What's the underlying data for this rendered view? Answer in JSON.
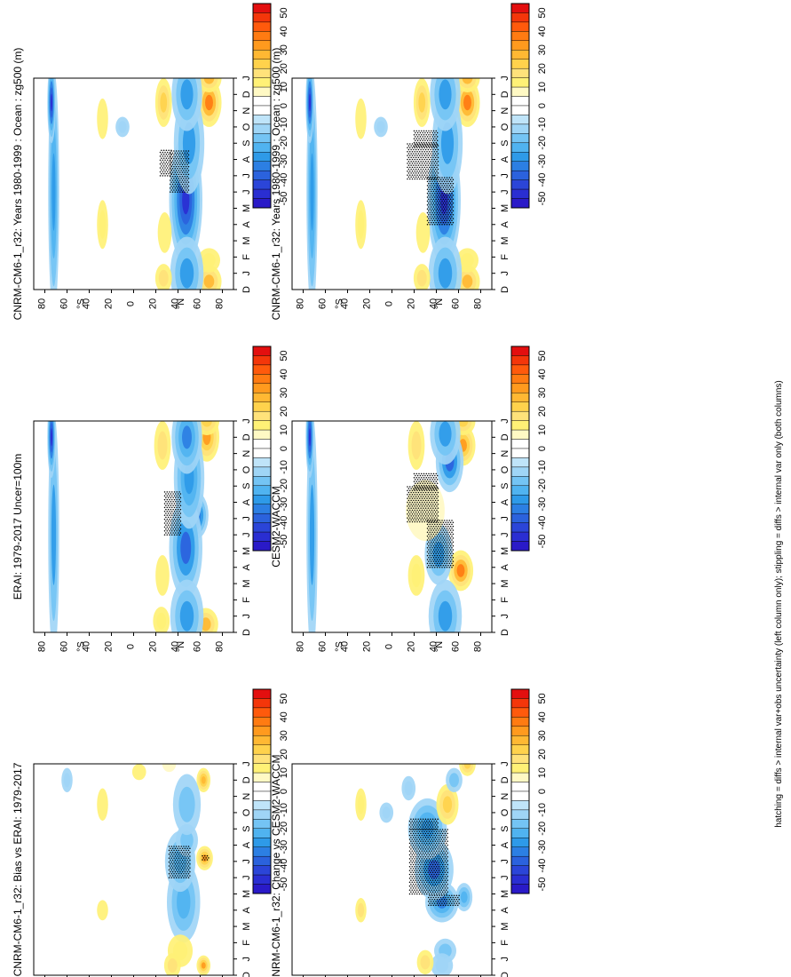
{
  "figure": {
    "footnote": "hatching = diffs > internal var+obs uncertainty (left column only); stippling = diffs > internal var only (both columns)"
  },
  "chart_data": [
    {
      "type": "heatmap",
      "title": "CNRM-CM6-1_r32: Years 1980-1999 : Ocean : zg500 (m)",
      "x_label": "",
      "x_ticks": [
        "D",
        "J",
        "F",
        "M",
        "A",
        "M",
        "J",
        "J",
        "A",
        "S",
        "O",
        "N",
        "D",
        "J"
      ],
      "y_ticks": [
        "80",
        "60",
        "40",
        "20",
        "0",
        "20",
        "40",
        "60",
        "80"
      ],
      "y_hemisphere_labels": [
        "°N",
        "°S"
      ],
      "colorbar_ticks": [
        "50",
        "40",
        "30",
        "20",
        "10",
        "0",
        "-10",
        "-20",
        "-30",
        "-40",
        "-50"
      ],
      "blobs": [
        {
          "month": 0.5,
          "lat": 68,
          "dm": 0.8,
          "dl": 9,
          "value": 25
        },
        {
          "month": 11.5,
          "lat": 68,
          "dm": 1.2,
          "dl": 9,
          "value": 35
        },
        {
          "month": 13.0,
          "lat": 68,
          "dm": 0.7,
          "dl": 9,
          "value": 25
        },
        {
          "month": 1.8,
          "lat": 68,
          "dm": 0.6,
          "dl": 8,
          "value": 12
        },
        {
          "month": 5.5,
          "lat": 47,
          "dm": 3.2,
          "dl": 12,
          "value": -45
        },
        {
          "month": 1.0,
          "lat": 48,
          "dm": 1.8,
          "dl": 12,
          "value": -25
        },
        {
          "month": 9.0,
          "lat": 50,
          "dm": 2.5,
          "dl": 11,
          "value": -25
        },
        {
          "month": 12.0,
          "lat": 48,
          "dm": 1.8,
          "dl": 11,
          "value": -25
        },
        {
          "month": 3.5,
          "lat": 28,
          "dm": 1.0,
          "dl": 5,
          "value": 10
        },
        {
          "month": 11.5,
          "lat": 27,
          "dm": 1.2,
          "dl": 6,
          "value": 20
        },
        {
          "month": 0.7,
          "lat": 27,
          "dm": 0.7,
          "dl": 6,
          "value": 15
        },
        {
          "month": 4.0,
          "lat": -28,
          "dm": 1.2,
          "dl": 4,
          "value": 12
        },
        {
          "month": 10.5,
          "lat": -28,
          "dm": 1.0,
          "dl": 4,
          "value": 10
        },
        {
          "month": 10.0,
          "lat": -10,
          "dm": 0.5,
          "dl": 5,
          "value": -12
        },
        {
          "month": 6.0,
          "lat": -72,
          "dm": 6.0,
          "dl": 4,
          "value": -28
        },
        {
          "month": 11.5,
          "lat": -74,
          "dm": 2.0,
          "dl": 3,
          "value": -45
        }
      ],
      "stipple": [
        {
          "m0": 6.0,
          "m1": 8.6,
          "l0": 33,
          "l1": 50
        },
        {
          "m0": 7.0,
          "m1": 8.6,
          "l0": 24,
          "l1": 34
        }
      ]
    },
    {
      "type": "heatmap",
      "title": "ERAI: 1979-2017 Uncer=100m",
      "x_ticks": [
        "D",
        "J",
        "F",
        "M",
        "A",
        "M",
        "J",
        "J",
        "A",
        "S",
        "O",
        "N",
        "D",
        "J"
      ],
      "y_ticks": [
        "80",
        "60",
        "40",
        "20",
        "0",
        "20",
        "40",
        "60",
        "80"
      ],
      "y_hemisphere_labels": [
        "°N",
        "°S"
      ],
      "colorbar_ticks": [
        "50",
        "40",
        "30",
        "20",
        "10",
        "0",
        "-10",
        "-20",
        "-30",
        "-40",
        "-50"
      ],
      "blobs": [
        {
          "month": 0.5,
          "lat": 65,
          "dm": 0.8,
          "dl": 9,
          "value": 25
        },
        {
          "month": 12.0,
          "lat": 66,
          "dm": 1.2,
          "dl": 9,
          "value": 30
        },
        {
          "month": 13.0,
          "lat": 66,
          "dm": 0.7,
          "dl": 9,
          "value": 20
        },
        {
          "month": 7.2,
          "lat": 55,
          "dm": 1.2,
          "dl": 10,
          "value": -40
        },
        {
          "month": 5.2,
          "lat": 47,
          "dm": 2.5,
          "dl": 12,
          "value": -35
        },
        {
          "month": 1.0,
          "lat": 48,
          "dm": 1.8,
          "dl": 12,
          "value": -25
        },
        {
          "month": 9.5,
          "lat": 50,
          "dm": 2.5,
          "dl": 11,
          "value": -28
        },
        {
          "month": 12.0,
          "lat": 48,
          "dm": 1.8,
          "dl": 11,
          "value": -30
        },
        {
          "month": 3.5,
          "lat": 26,
          "dm": 1.0,
          "dl": 5,
          "value": 10
        },
        {
          "month": 11.5,
          "lat": 26,
          "dm": 1.2,
          "dl": 6,
          "value": 15
        },
        {
          "month": 0.7,
          "lat": 25,
          "dm": 0.7,
          "dl": 6,
          "value": 12
        },
        {
          "month": 6.0,
          "lat": -72,
          "dm": 6.0,
          "dl": 4,
          "value": -25
        },
        {
          "month": 12.0,
          "lat": -74,
          "dm": 2.0,
          "dl": 3,
          "value": -45
        }
      ],
      "stipple": [
        {
          "m0": 6.0,
          "m1": 8.7,
          "l0": 28,
          "l1": 42
        }
      ]
    },
    {
      "type": "heatmap",
      "title": "CNRM-CM6-1_r32: Bias vs ERAI: 1979-2017",
      "x_ticks": [
        "D",
        "J",
        "F",
        "M",
        "A",
        "M",
        "J",
        "J",
        "A",
        "S",
        "O",
        "N",
        "D",
        "J"
      ],
      "y_ticks": [
        "80",
        "60",
        "40",
        "20",
        "0",
        "20",
        "40",
        "60",
        "80"
      ],
      "y_hemisphere_labels": [
        "°N",
        "°S"
      ],
      "colorbar_ticks": [
        "50",
        "40",
        "30",
        "20",
        "10",
        "0",
        "-10",
        "-20",
        "-30",
        "-40",
        "-50"
      ],
      "blobs": [
        {
          "month": 7.2,
          "lat": 64,
          "dm": 0.6,
          "dl": 6,
          "value": 30
        },
        {
          "month": 12.0,
          "lat": 63,
          "dm": 0.6,
          "dl": 5,
          "value": 28
        },
        {
          "month": 0.6,
          "lat": 63,
          "dm": 0.5,
          "dl": 5,
          "value": 30
        },
        {
          "month": 4.5,
          "lat": 45,
          "dm": 2.0,
          "dl": 12,
          "value": -20
        },
        {
          "month": 7.0,
          "lat": 42,
          "dm": 1.5,
          "dl": 11,
          "value": -22
        },
        {
          "month": 8.3,
          "lat": 48,
          "dm": 0.8,
          "dl": 8,
          "value": -15
        },
        {
          "month": 10.5,
          "lat": 48,
          "dm": 1.5,
          "dl": 10,
          "value": -18
        },
        {
          "month": 1.5,
          "lat": 42,
          "dm": 0.8,
          "dl": 9,
          "value": 12
        },
        {
          "month": 0.6,
          "lat": 35,
          "dm": 0.6,
          "dl": 6,
          "value": 15
        },
        {
          "month": 13.0,
          "lat": 32,
          "dm": 0.4,
          "dl": 5,
          "value": 8
        },
        {
          "month": 4.0,
          "lat": -28,
          "dm": 0.5,
          "dl": 4,
          "value": 10
        },
        {
          "month": 10.5,
          "lat": -28,
          "dm": 0.8,
          "dl": 4,
          "value": 10
        },
        {
          "month": 12.0,
          "lat": -60,
          "dm": 0.6,
          "dl": 4,
          "value": -12
        },
        {
          "month": 12.5,
          "lat": 5,
          "dm": 0.4,
          "dl": 5,
          "value": 10
        }
      ],
      "stipple": [
        {
          "m0": 6.0,
          "m1": 8.0,
          "l0": 32,
          "l1": 50
        },
        {
          "m0": 7.1,
          "m1": 7.4,
          "l0": 62,
          "l1": 68
        }
      ]
    },
    {
      "type": "heatmap",
      "title": "CNRM-CM6-1_r32: Years 1980-1999 : Ocean : zg500 (m)",
      "x_ticks": [
        "D",
        "J",
        "F",
        "M",
        "A",
        "M",
        "J",
        "J",
        "A",
        "S",
        "O",
        "N",
        "D",
        "J"
      ],
      "y_ticks": [
        "80",
        "60",
        "40",
        "20",
        "0",
        "20",
        "40",
        "60",
        "80"
      ],
      "y_hemisphere_labels": [
        "°N",
        "°S"
      ],
      "colorbar_ticks": [
        "50",
        "40",
        "30",
        "20",
        "10",
        "0",
        "-10",
        "-20",
        "-30",
        "-40",
        "-50"
      ],
      "blobs": [
        {
          "month": 0.5,
          "lat": 68,
          "dm": 0.8,
          "dl": 9,
          "value": 25
        },
        {
          "month": 11.5,
          "lat": 68,
          "dm": 1.2,
          "dl": 9,
          "value": 35
        },
        {
          "month": 13.0,
          "lat": 68,
          "dm": 0.7,
          "dl": 9,
          "value": 25
        },
        {
          "month": 1.8,
          "lat": 68,
          "dm": 0.6,
          "dl": 8,
          "value": 12
        },
        {
          "month": 5.5,
          "lat": 47,
          "dm": 3.2,
          "dl": 12,
          "value": -45
        },
        {
          "month": 1.0,
          "lat": 48,
          "dm": 1.8,
          "dl": 12,
          "value": -25
        },
        {
          "month": 9.0,
          "lat": 50,
          "dm": 2.5,
          "dl": 11,
          "value": -25
        },
        {
          "month": 12.0,
          "lat": 48,
          "dm": 1.8,
          "dl": 11,
          "value": -25
        },
        {
          "month": 3.5,
          "lat": 28,
          "dm": 1.0,
          "dl": 5,
          "value": 10
        },
        {
          "month": 11.5,
          "lat": 27,
          "dm": 1.2,
          "dl": 6,
          "value": 20
        },
        {
          "month": 0.7,
          "lat": 27,
          "dm": 0.7,
          "dl": 6,
          "value": 15
        },
        {
          "month": 4.0,
          "lat": -28,
          "dm": 1.2,
          "dl": 4,
          "value": 12
        },
        {
          "month": 10.5,
          "lat": -28,
          "dm": 1.0,
          "dl": 4,
          "value": 10
        },
        {
          "month": 10.0,
          "lat": -10,
          "dm": 0.5,
          "dl": 5,
          "value": -12
        },
        {
          "month": 6.0,
          "lat": -72,
          "dm": 6.0,
          "dl": 4,
          "value": -28
        },
        {
          "month": 11.5,
          "lat": -74,
          "dm": 2.0,
          "dl": 3,
          "value": -45
        }
      ],
      "stipple": [
        {
          "m0": 4.0,
          "m1": 7.0,
          "l0": 32,
          "l1": 56
        },
        {
          "m0": 6.8,
          "m1": 9.0,
          "l0": 14,
          "l1": 42
        },
        {
          "m0": 8.8,
          "m1": 9.8,
          "l0": 20,
          "l1": 42
        }
      ]
    },
    {
      "type": "heatmap",
      "title": "CESM2-WACCM",
      "x_ticks": [
        "D",
        "J",
        "F",
        "M",
        "A",
        "M",
        "J",
        "J",
        "A",
        "S",
        "O",
        "N",
        "D",
        "J"
      ],
      "y_ticks": [
        "80",
        "60",
        "40",
        "20",
        "0",
        "20",
        "40",
        "60",
        "80"
      ],
      "y_hemisphere_labels": [
        "°N",
        "°S"
      ],
      "colorbar_ticks": [
        "50",
        "40",
        "30",
        "20",
        "10",
        "0",
        "-10",
        "-20",
        "-30",
        "-40",
        "-50"
      ],
      "blobs": [
        {
          "month": 3.8,
          "lat": 62,
          "dm": 1.0,
          "dl": 9,
          "value": 35
        },
        {
          "month": 11.5,
          "lat": 64,
          "dm": 1.0,
          "dl": 9,
          "value": 32
        },
        {
          "month": 13.0,
          "lat": 64,
          "dm": 0.7,
          "dl": 9,
          "value": 20
        },
        {
          "month": 10.5,
          "lat": 52,
          "dm": 1.5,
          "dl": 10,
          "value": -35
        },
        {
          "month": 4.8,
          "lat": 42,
          "dm": 1.5,
          "dl": 10,
          "value": -25
        },
        {
          "month": 1.0,
          "lat": 48,
          "dm": 1.8,
          "dl": 12,
          "value": -25
        },
        {
          "month": 12.2,
          "lat": 48,
          "dm": 1.5,
          "dl": 11,
          "value": -25
        },
        {
          "month": 7.5,
          "lat": 30,
          "dm": 1.5,
          "dl": 14,
          "value": 8
        },
        {
          "month": 3.5,
          "lat": 22,
          "dm": 1.0,
          "dl": 6,
          "value": 12
        },
        {
          "month": 11.5,
          "lat": 22,
          "dm": 1.2,
          "dl": 6,
          "value": 15
        },
        {
          "month": 6.0,
          "lat": -72,
          "dm": 6.0,
          "dl": 4,
          "value": -25
        },
        {
          "month": 12.0,
          "lat": -74,
          "dm": 2.0,
          "dl": 3,
          "value": -45
        }
      ],
      "stipple": [
        {
          "m0": 4.0,
          "m1": 7.0,
          "l0": 32,
          "l1": 56
        },
        {
          "m0": 6.8,
          "m1": 9.0,
          "l0": 14,
          "l1": 42
        },
        {
          "m0": 8.8,
          "m1": 9.8,
          "l0": 20,
          "l1": 42
        }
      ]
    },
    {
      "type": "heatmap",
      "title": "CNRM-CM6-1_r32: Change vs CESM2-WACCM",
      "x_ticks": [
        "D",
        "J",
        "F",
        "M",
        "A",
        "M",
        "J",
        "J",
        "A",
        "S",
        "O",
        "N",
        "D",
        "J"
      ],
      "y_ticks": [
        "80",
        "60",
        "40",
        "20",
        "0",
        "20",
        "40",
        "60",
        "80"
      ],
      "y_hemisphere_labels": [
        "°N",
        "°S"
      ],
      "colorbar_ticks": [
        "50",
        "40",
        "30",
        "20",
        "10",
        "0",
        "-10",
        "-20",
        "-30",
        "-40",
        "-50"
      ],
      "blobs": [
        {
          "month": 4.5,
          "lat": 45,
          "dm": 1.0,
          "dl": 12,
          "value": -30
        },
        {
          "month": 6.5,
          "lat": 38,
          "dm": 1.5,
          "dl": 14,
          "value": -35
        },
        {
          "month": 9.0,
          "lat": 32,
          "dm": 1.5,
          "dl": 14,
          "value": -28
        },
        {
          "month": 10.5,
          "lat": 50,
          "dm": 1.0,
          "dl": 8,
          "value": 20
        },
        {
          "month": 1.5,
          "lat": 48,
          "dm": 0.6,
          "dl": 8,
          "value": -15
        },
        {
          "month": 0.6,
          "lat": 45,
          "dm": 0.6,
          "dl": 8,
          "value": -12
        },
        {
          "month": 4.8,
          "lat": 65,
          "dm": 0.7,
          "dl": 6,
          "value": -20
        },
        {
          "month": 13.0,
          "lat": 68,
          "dm": 0.6,
          "dl": 6,
          "value": 20
        },
        {
          "month": 12.0,
          "lat": 56,
          "dm": 0.6,
          "dl": 6,
          "value": -18
        },
        {
          "month": 11.5,
          "lat": 15,
          "dm": 0.6,
          "dl": 5,
          "value": -12
        },
        {
          "month": 10.0,
          "lat": -5,
          "dm": 0.5,
          "dl": 5,
          "value": -12
        },
        {
          "month": 4.0,
          "lat": -28,
          "dm": 0.6,
          "dl": 4,
          "value": 15
        },
        {
          "month": 10.5,
          "lat": -28,
          "dm": 0.8,
          "dl": 4,
          "value": 12
        },
        {
          "month": 0.8,
          "lat": 30,
          "dm": 0.6,
          "dl": 6,
          "value": 15
        }
      ],
      "stipple": [
        {
          "m0": 4.3,
          "m1": 5.0,
          "l0": 33,
          "l1": 60
        },
        {
          "m0": 5.0,
          "m1": 9.0,
          "l0": 16,
          "l1": 50
        },
        {
          "m0": 9.0,
          "m1": 9.6,
          "l0": 16,
          "l1": 42
        }
      ]
    }
  ]
}
